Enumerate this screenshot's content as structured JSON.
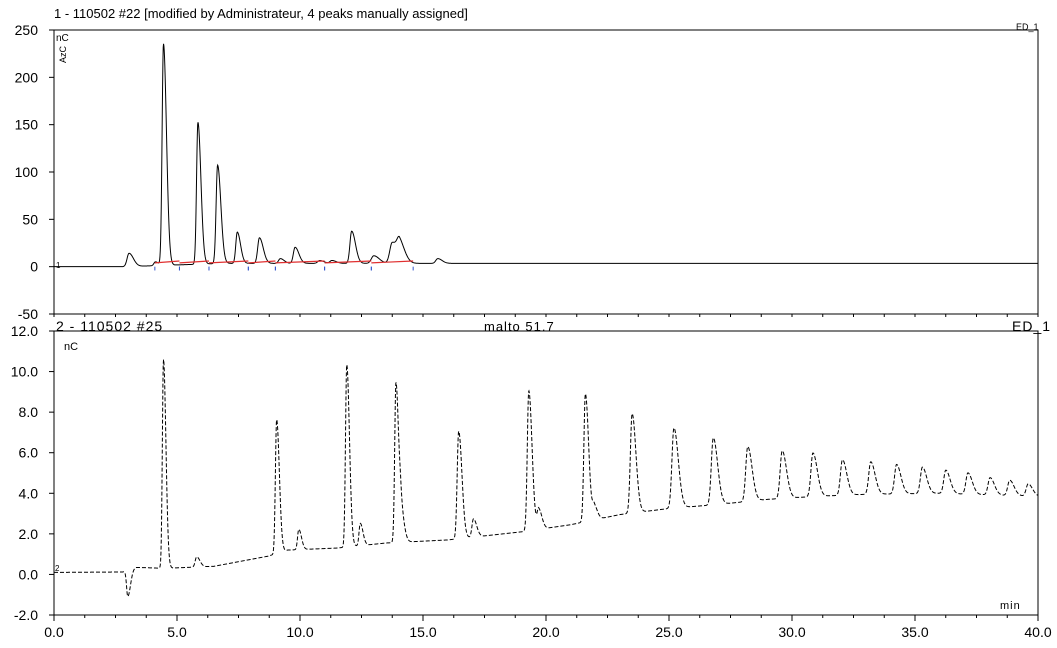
{
  "chart_data": [
    {
      "type": "line",
      "title": "1 - 110502 #22 [modified by Administrateur, 4 peaks manually assigned]",
      "detector_label": "ED_1",
      "unit_label": "nC",
      "unit_rotated": "AzC",
      "channel_marker": "1",
      "xlim": [
        0,
        40
      ],
      "ylim": [
        -50,
        250
      ],
      "y_ticks": [
        "250",
        "200",
        "150",
        "100",
        "50",
        "0",
        "-50"
      ],
      "series": [
        {
          "style": "solid",
          "baseline": 0,
          "end_level": 3.5,
          "peaks": [
            {
              "x": 3.05,
              "h": 14,
              "w": 0.08
            },
            {
              "x": 4.12,
              "h": 4,
              "w": 0.06
            },
            {
              "x": 4.45,
              "h": 234,
              "w": 0.055
            },
            {
              "x": 5.85,
              "h": 150,
              "w": 0.055
            },
            {
              "x": 6.65,
              "h": 104,
              "w": 0.06
            },
            {
              "x": 7.45,
              "h": 33,
              "w": 0.06
            },
            {
              "x": 8.35,
              "h": 27,
              "w": 0.07
            },
            {
              "x": 9.2,
              "h": 5,
              "w": 0.07
            },
            {
              "x": 9.8,
              "h": 17,
              "w": 0.07
            },
            {
              "x": 10.8,
              "h": 3,
              "w": 0.08
            },
            {
              "x": 11.3,
              "h": 3,
              "w": 0.08
            },
            {
              "x": 12.1,
              "h": 34,
              "w": 0.07
            },
            {
              "x": 13.0,
              "h": 8,
              "w": 0.1
            },
            {
              "x": 13.75,
              "h": 22,
              "w": 0.1
            },
            {
              "x": 14.05,
              "h": 19,
              "w": 0.1
            },
            {
              "x": 15.6,
              "h": 5,
              "w": 0.08
            }
          ]
        }
      ],
      "baseline_segments": [
        [
          4.1,
          5.1
        ],
        [
          5.1,
          6.3
        ],
        [
          6.3,
          7.9
        ],
        [
          7.9,
          9.0
        ],
        [
          9.0,
          11.0
        ],
        [
          11.0,
          12.9
        ],
        [
          12.9,
          14.6
        ]
      ]
    },
    {
      "type": "line",
      "title": "2 - 110502 #25",
      "subtitle": "malto 51.7",
      "detector_label": "ED_1",
      "unit_label": "nC",
      "channel_marker": "2",
      "xlabel": "min",
      "xlim": [
        0,
        40
      ],
      "ylim": [
        -2,
        12
      ],
      "x_ticks": [
        "0.0",
        "5.0",
        "10.0",
        "15.0",
        "20.0",
        "25.0",
        "30.0",
        "35.0",
        "40.0"
      ],
      "y_ticks": [
        "12.0",
        "10.0",
        "8.0",
        "6.0",
        "4.0",
        "2.0",
        "0.0",
        "-2.0"
      ],
      "series": [
        {
          "style": "dashed",
          "baseline_points": [
            [
              0,
              0.1
            ],
            [
              2.8,
              0.12
            ],
            [
              3.3,
              0.35
            ],
            [
              4.5,
              0.3
            ],
            [
              6.5,
              0.4
            ],
            [
              8.7,
              0.9
            ],
            [
              9.5,
              1.2
            ],
            [
              11.5,
              1.3
            ],
            [
              13.5,
              1.55
            ],
            [
              16.0,
              1.7
            ],
            [
              19.0,
              2.1
            ],
            [
              21.0,
              2.45
            ],
            [
              23.0,
              2.95
            ],
            [
              25.0,
              3.25
            ],
            [
              27.0,
              3.45
            ],
            [
              29.0,
              3.7
            ],
            [
              31.0,
              3.85
            ],
            [
              33.0,
              3.95
            ],
            [
              36.0,
              4.0
            ],
            [
              40.0,
              3.85
            ]
          ],
          "peaks": [
            {
              "x": 3.0,
              "h": -1.3,
              "w": 0.05
            },
            {
              "x": 4.45,
              "h": 10.3,
              "w": 0.045
            },
            {
              "x": 5.8,
              "h": 0.5,
              "w": 0.06
            },
            {
              "x": 9.05,
              "h": 6.6,
              "w": 0.05
            },
            {
              "x": 9.95,
              "h": 1.0,
              "w": 0.05
            },
            {
              "x": 11.9,
              "h": 9.0,
              "w": 0.05
            },
            {
              "x": 12.45,
              "h": 1.1,
              "w": 0.05
            },
            {
              "x": 13.9,
              "h": 7.9,
              "w": 0.05
            },
            {
              "x": 14.1,
              "h": 1.5,
              "w": 0.06
            },
            {
              "x": 16.45,
              "h": 5.3,
              "w": 0.06
            },
            {
              "x": 17.05,
              "h": 0.9,
              "w": 0.06
            },
            {
              "x": 19.3,
              "h": 6.9,
              "w": 0.06
            },
            {
              "x": 19.7,
              "h": 1.0,
              "w": 0.06
            },
            {
              "x": 21.6,
              "h": 6.3,
              "w": 0.06
            },
            {
              "x": 21.95,
              "h": 0.7,
              "w": 0.06
            },
            {
              "x": 23.5,
              "h": 4.9,
              "w": 0.07
            },
            {
              "x": 25.2,
              "h": 3.95,
              "w": 0.08
            },
            {
              "x": 26.8,
              "h": 3.3,
              "w": 0.08
            },
            {
              "x": 28.2,
              "h": 2.7,
              "w": 0.08
            },
            {
              "x": 29.6,
              "h": 2.35,
              "w": 0.08
            },
            {
              "x": 30.85,
              "h": 2.15,
              "w": 0.08
            },
            {
              "x": 32.05,
              "h": 1.75,
              "w": 0.08
            },
            {
              "x": 33.2,
              "h": 1.6,
              "w": 0.08
            },
            {
              "x": 34.25,
              "h": 1.45,
              "w": 0.08
            },
            {
              "x": 35.3,
              "h": 1.3,
              "w": 0.08
            },
            {
              "x": 36.25,
              "h": 1.15,
              "w": 0.08
            },
            {
              "x": 37.15,
              "h": 1.05,
              "w": 0.08
            },
            {
              "x": 38.05,
              "h": 0.85,
              "w": 0.08
            },
            {
              "x": 38.85,
              "h": 0.75,
              "w": 0.08
            },
            {
              "x": 39.6,
              "h": 0.6,
              "w": 0.08
            }
          ]
        }
      ]
    }
  ]
}
